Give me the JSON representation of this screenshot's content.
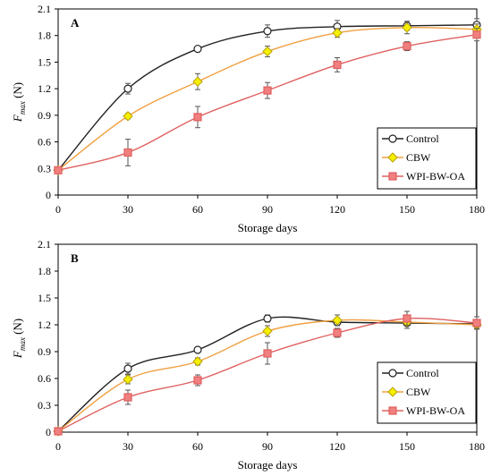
{
  "chart_data": [
    {
      "type": "line",
      "panel_label": "A",
      "xlabel": "Storage days",
      "ylabel_main": "F",
      "ylabel_sub": "max",
      "ylabel_unit": " (N)",
      "x": [
        0,
        30,
        60,
        90,
        120,
        150,
        180
      ],
      "xlim": [
        0,
        180
      ],
      "ylim": [
        0,
        2.1
      ],
      "xticks": [
        "0",
        "30",
        "60",
        "90",
        "120",
        "150",
        "180"
      ],
      "yticks": [
        "0",
        "0.3",
        "0.6",
        "0.9",
        "1.2",
        "1.5",
        "1.8",
        "2.1"
      ],
      "legend_position": "bottom-right",
      "series": [
        {
          "name": "Control",
          "values": [
            0.28,
            1.2,
            1.65,
            1.85,
            1.9,
            1.91,
            1.92
          ],
          "errors": [
            0.03,
            0.06,
            0.03,
            0.07,
            0.07,
            0.05,
            0.07
          ],
          "color": "#222222",
          "marker": "circle",
          "marker_fill": "#ffffff"
        },
        {
          "name": "CBW",
          "values": [
            0.28,
            0.89,
            1.28,
            1.62,
            1.83,
            1.89,
            1.87
          ],
          "errors": [
            0.03,
            0.03,
            0.09,
            0.06,
            0.05,
            0.07,
            0.06
          ],
          "color": "#f0a040",
          "marker": "diamond",
          "marker_fill": "#f5f000"
        },
        {
          "name": "WPI-BW-OA",
          "values": [
            0.28,
            0.48,
            0.88,
            1.18,
            1.47,
            1.68,
            1.81
          ],
          "errors": [
            0.03,
            0.15,
            0.12,
            0.09,
            0.08,
            0.05,
            0.07
          ],
          "color": "#e06060",
          "marker": "square",
          "marker_fill": "#f08080"
        }
      ]
    },
    {
      "type": "line",
      "panel_label": "B",
      "xlabel": "Storage days",
      "ylabel_main": "F",
      "ylabel_sub": "max",
      "ylabel_unit": " (N)",
      "x": [
        0,
        30,
        60,
        90,
        120,
        150,
        180
      ],
      "xlim": [
        0,
        180
      ],
      "ylim": [
        0,
        2.1
      ],
      "xticks": [
        "0",
        "30",
        "60",
        "90",
        "120",
        "150",
        "180"
      ],
      "yticks": [
        "0",
        "0.3",
        "0.6",
        "0.9",
        "1.2",
        "1.5",
        "1.8",
        "2.1"
      ],
      "legend_position": "bottom-right",
      "series": [
        {
          "name": "Control",
          "values": [
            0.01,
            0.71,
            0.92,
            1.27,
            1.23,
            1.22,
            1.21
          ],
          "errors": [
            0.02,
            0.06,
            0.03,
            0.04,
            0.04,
            0.06,
            0.05
          ],
          "color": "#222222",
          "marker": "circle",
          "marker_fill": "#ffffff"
        },
        {
          "name": "CBW",
          "values": [
            0.01,
            0.59,
            0.79,
            1.13,
            1.25,
            1.23,
            1.2
          ],
          "errors": [
            0.02,
            0.05,
            0.04,
            0.06,
            0.06,
            0.07,
            0.05
          ],
          "color": "#f0a040",
          "marker": "diamond",
          "marker_fill": "#f5f000"
        },
        {
          "name": "WPI-BW-OA",
          "values": [
            0.01,
            0.39,
            0.58,
            0.88,
            1.11,
            1.27,
            1.22
          ],
          "errors": [
            0.02,
            0.08,
            0.06,
            0.12,
            0.05,
            0.08,
            0.07
          ],
          "color": "#e06060",
          "marker": "square",
          "marker_fill": "#f08080"
        }
      ]
    }
  ]
}
